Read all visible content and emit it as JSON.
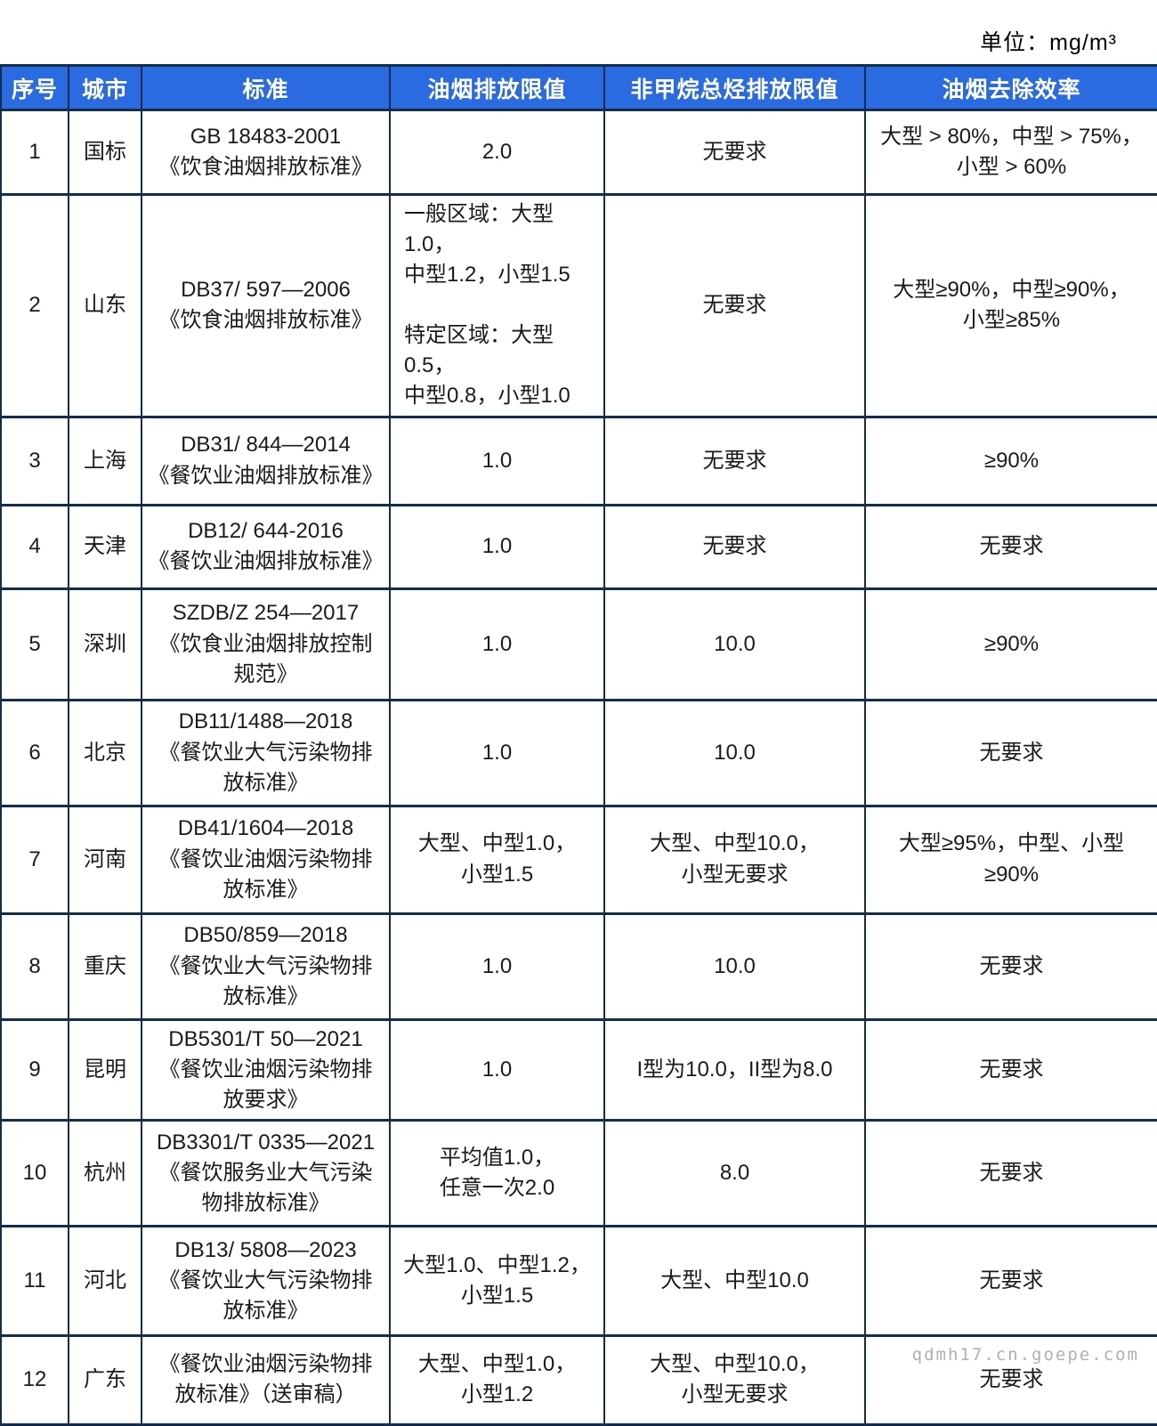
{
  "unit_label": "单位：mg/m³",
  "watermark": "qdmh17.cn.goepe.com",
  "colors": {
    "header_bg": "#2A6BE2",
    "header_text": "#FFFFFF",
    "border": "#132E4D",
    "body_text": "#1A1A1A",
    "watermark_text": "#B0B0B0"
  },
  "table": {
    "columns": [
      "序号",
      "城市",
      "标准",
      "油烟排放限值",
      "非甲烷总烃排放限值",
      "油烟去除效率"
    ],
    "rows": [
      {
        "no": "1",
        "city": "国标",
        "standard": [
          "GB 18483-2001",
          "《饮食油烟排放标准》"
        ],
        "limit": "2.0",
        "nmhc": "无要求",
        "efficiency": [
          "大型 > 80%，中型 > 75%，",
          "小型 > 60%"
        ]
      },
      {
        "no": "2",
        "city": "山东",
        "standard": [
          "DB37/ 597—2006",
          "《饮食油烟排放标准》"
        ],
        "limit": [
          "一般区域：大型1.0，",
          "中型1.2，小型1.5",
          "",
          "特定区域：大型0.5，",
          "中型0.8，小型1.0"
        ],
        "limit_align": "left",
        "nmhc": "无要求",
        "efficiency": [
          "大型≥90%，中型≥90%，",
          "小型≥85%"
        ]
      },
      {
        "no": "3",
        "city": "上海",
        "standard": [
          "DB31/ 844—2014",
          "《餐饮业油烟排放标准》"
        ],
        "limit": "1.0",
        "nmhc": "无要求",
        "efficiency": "≥90%"
      },
      {
        "no": "4",
        "city": "天津",
        "standard": [
          "DB12/ 644-2016",
          "《餐饮业油烟排放标准》"
        ],
        "limit": "1.0",
        "nmhc": "无要求",
        "efficiency": "无要求"
      },
      {
        "no": "5",
        "city": "深圳",
        "standard": [
          "SZDB/Z 254—2017",
          "《饮食业油烟排放控制",
          "规范》"
        ],
        "limit": "1.0",
        "nmhc": "10.0",
        "efficiency": "≥90%"
      },
      {
        "no": "6",
        "city": "北京",
        "standard": [
          "DB11/1488—2018",
          "《餐饮业大气污染物排",
          "放标准》"
        ],
        "limit": "1.0",
        "nmhc": "10.0",
        "efficiency": "无要求"
      },
      {
        "no": "7",
        "city": "河南",
        "standard": [
          "DB41/1604—2018",
          "《餐饮业油烟污染物排",
          "放标准》"
        ],
        "limit": [
          "大型、中型1.0，",
          "小型1.5"
        ],
        "nmhc": [
          "大型、中型10.0，",
          "小型无要求"
        ],
        "efficiency": [
          "大型≥95%，中型、小型",
          "≥90%"
        ]
      },
      {
        "no": "8",
        "city": "重庆",
        "standard": [
          "DB50/859—2018",
          "《餐饮业大气污染物排",
          "放标准》"
        ],
        "limit": "1.0",
        "nmhc": "10.0",
        "efficiency": "无要求"
      },
      {
        "no": "9",
        "city": "昆明",
        "standard": [
          "DB5301/T 50—2021",
          "《餐饮业油烟污染物排",
          "放要求》"
        ],
        "limit": "1.0",
        "nmhc": "I型为10.0，II型为8.0",
        "efficiency": "无要求"
      },
      {
        "no": "10",
        "city": "杭州",
        "standard": [
          "DB3301/T 0335—2021",
          "《餐饮服务业大气污染",
          "物排放标准》"
        ],
        "limit": [
          "平均值1.0，",
          "任意一次2.0"
        ],
        "nmhc": "8.0",
        "efficiency": "无要求"
      },
      {
        "no": "11",
        "city": "河北",
        "standard": [
          "DB13/ 5808—2023",
          "《餐饮业大气污染物排",
          "放标准》"
        ],
        "limit": [
          "大型1.0、中型1.2，",
          "小型1.5"
        ],
        "nmhc": "大型、中型10.0",
        "efficiency": "无要求"
      },
      {
        "no": "12",
        "city": "广东",
        "standard": [
          "《餐饮业油烟污染物排",
          "放标准》（送审稿）"
        ],
        "limit": [
          "大型、中型1.0，",
          "小型1.2"
        ],
        "nmhc": [
          "大型、中型10.0，",
          "小型无要求"
        ],
        "efficiency": "无要求"
      }
    ]
  }
}
